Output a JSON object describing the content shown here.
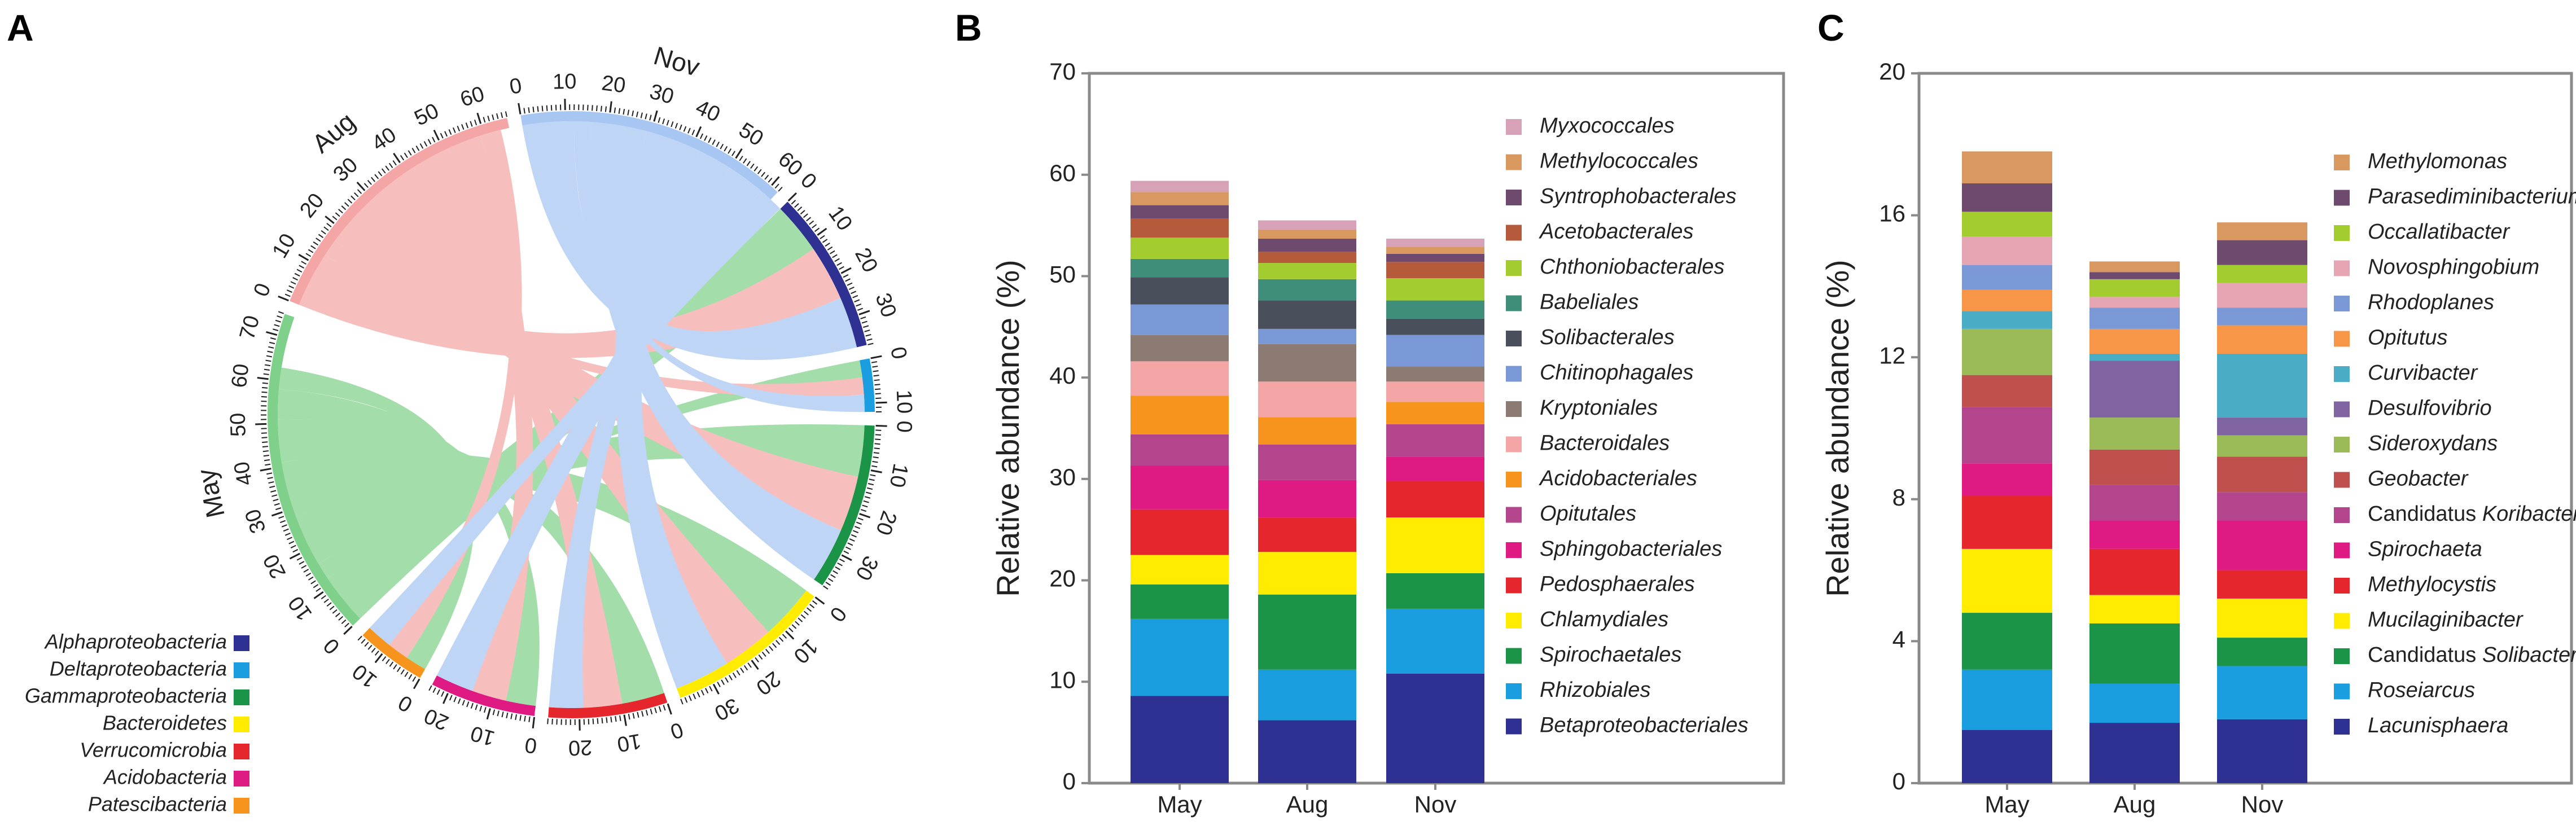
{
  "panels": {
    "a": "A",
    "b": "B",
    "c": "C"
  },
  "chart_data": [
    {
      "type": "chord",
      "panel": "A",
      "groups": [
        {
          "name": "Aug",
          "total": 66,
          "color": "#f4a6a6"
        },
        {
          "name": "Nov",
          "total": 62,
          "color": "#a7c6f2"
        },
        {
          "name": "Alphaproteobacteria",
          "total": 37,
          "color": "#2e3192"
        },
        {
          "name": "Deltaproteobacteria",
          "total": 12,
          "color": "#1b9ee0"
        },
        {
          "name": "Gammaproteobacteria",
          "total": 38,
          "color": "#1b9447"
        },
        {
          "name": "Bacteroidetes",
          "total": 38,
          "color": "#ffec00"
        },
        {
          "name": "Verrucomicrobia",
          "total": 27,
          "color": "#e5262c"
        },
        {
          "name": "Acidobacteria",
          "total": 24,
          "color": "#e01a83"
        },
        {
          "name": "Patescibacteria",
          "total": 16,
          "color": "#f7941d"
        },
        {
          "name": "May",
          "total": 75,
          "color": "#7fd08a"
        }
      ],
      "ticks": {
        "Aug": [
          "0",
          "10",
          "20",
          "30",
          "40",
          "50",
          "60"
        ],
        "Nov": [
          "0",
          "10",
          "20",
          "30",
          "40",
          "50",
          "60"
        ],
        "Alphaproteobacteria": [
          "0",
          "10",
          "20",
          "30"
        ],
        "Deltaproteobacteria": [
          "0",
          "10"
        ],
        "Gammaproteobacteria": [
          "0",
          "10",
          "20",
          "30"
        ],
        "Bacteroidetes": [
          "0",
          "10",
          "20",
          "30"
        ],
        "Verrucomicrobia": [
          "0",
          "10",
          "20"
        ],
        "Acidobacteria": [
          "0",
          "10",
          "20"
        ],
        "Patescibacteria": [
          "0",
          "10"
        ],
        "May": [
          "0",
          "10",
          "20",
          "30",
          "40",
          "50",
          "60",
          "70"
        ]
      },
      "links": [
        {
          "source": "May",
          "target": "Alphaproteobacteria",
          "value": 12
        },
        {
          "source": "May",
          "target": "Deltaproteobacteria",
          "value": 4
        },
        {
          "source": "May",
          "target": "Gammaproteobacteria",
          "value": 12
        },
        {
          "source": "May",
          "target": "Bacteroidetes",
          "value": 13
        },
        {
          "source": "May",
          "target": "Verrucomicrobia",
          "value": 10
        },
        {
          "source": "May",
          "target": "Acidobacteria",
          "value": 7
        },
        {
          "source": "May",
          "target": "Patescibacteria",
          "value": 5
        },
        {
          "source": "Aug",
          "target": "Alphaproteobacteria",
          "value": 13
        },
        {
          "source": "Aug",
          "target": "Deltaproteobacteria",
          "value": 4
        },
        {
          "source": "Aug",
          "target": "Gammaproteobacteria",
          "value": 13
        },
        {
          "source": "Aug",
          "target": "Bacteroidetes",
          "value": 12
        },
        {
          "source": "Aug",
          "target": "Verrucomicrobia",
          "value": 9
        },
        {
          "source": "Aug",
          "target": "Acidobacteria",
          "value": 8
        },
        {
          "source": "Aug",
          "target": "Patescibacteria",
          "value": 5
        },
        {
          "source": "Nov",
          "target": "Alphaproteobacteria",
          "value": 12
        },
        {
          "source": "Nov",
          "target": "Deltaproteobacteria",
          "value": 4
        },
        {
          "source": "Nov",
          "target": "Gammaproteobacteria",
          "value": 13
        },
        {
          "source": "Nov",
          "target": "Bacteroidetes",
          "value": 13
        },
        {
          "source": "Nov",
          "target": "Verrucomicrobia",
          "value": 8
        },
        {
          "source": "Nov",
          "target": "Acidobacteria",
          "value": 9
        },
        {
          "source": "Nov",
          "target": "Patescibacteria",
          "value": 6
        }
      ],
      "legend": [
        "Alphaproteobacteria",
        "Deltaproteobacteria",
        "Gammaproteobacteria",
        "Bacteroidetes",
        "Verrucomicrobia",
        "Acidobacteria",
        "Patescibacteria"
      ]
    },
    {
      "type": "bar",
      "stacked": true,
      "panel": "B",
      "categories": [
        "May",
        "Aug",
        "Nov"
      ],
      "ylabel": "Relative abundance (%)",
      "xlabel": "",
      "ylim": [
        0,
        70
      ],
      "yticks": [
        0,
        10,
        20,
        30,
        40,
        50,
        60,
        70
      ],
      "series": [
        {
          "name": "Betaproteobacteriales",
          "color": "#2e3192",
          "values": [
            8.6,
            6.2,
            10.8
          ]
        },
        {
          "name": "Rhizobiales",
          "color": "#1b9ee0",
          "values": [
            7.6,
            5.0,
            6.4
          ]
        },
        {
          "name": "Spirochaetales",
          "color": "#1b9447",
          "values": [
            3.4,
            7.4,
            3.5
          ]
        },
        {
          "name": "Chlamydiales",
          "color": "#ffec00",
          "values": [
            2.9,
            4.2,
            5.5
          ]
        },
        {
          "name": "Pedosphaerales",
          "color": "#e5262c",
          "values": [
            4.5,
            3.4,
            3.6
          ]
        },
        {
          "name": "Sphingobacteriales",
          "color": "#e01a83",
          "values": [
            4.3,
            3.7,
            2.4
          ]
        },
        {
          "name": "Opitutales",
          "color": "#b2458c",
          "values": [
            3.1,
            3.5,
            3.2
          ]
        },
        {
          "name": "Acidobacteriales",
          "color": "#f7941d",
          "values": [
            3.8,
            2.7,
            2.2
          ]
        },
        {
          "name": "Bacteroidales",
          "color": "#f4a6a6",
          "values": [
            3.4,
            3.5,
            2.0
          ]
        },
        {
          "name": "Kryptoniales",
          "color": "#8c7b72",
          "values": [
            2.6,
            3.7,
            1.5
          ]
        },
        {
          "name": "Chitinophagales",
          "color": "#7a98d6",
          "values": [
            3.0,
            1.5,
            3.1
          ]
        },
        {
          "name": "Solibacterales",
          "color": "#4a4f5c",
          "values": [
            2.7,
            2.8,
            1.6
          ]
        },
        {
          "name": "Babeliales",
          "color": "#3f8e7a",
          "values": [
            1.8,
            2.1,
            1.8
          ]
        },
        {
          "name": "Chthoniobacterales",
          "color": "#a3cc2f",
          "values": [
            2.1,
            1.6,
            2.2
          ]
        },
        {
          "name": "Acetobacterales",
          "color": "#b55a3b",
          "values": [
            1.9,
            1.1,
            1.6
          ]
        },
        {
          "name": "Syntrophobacterales",
          "color": "#6e4a6f",
          "values": [
            1.3,
            1.3,
            0.8
          ]
        },
        {
          "name": "Methylococcales",
          "color": "#d9985f",
          "values": [
            1.3,
            0.9,
            0.7
          ]
        },
        {
          "name": "Myxococcales",
          "color": "#d7a1b8",
          "values": [
            1.1,
            0.9,
            0.8
          ]
        }
      ],
      "legend_order": [
        "Myxococcales",
        "Methylococcales",
        "Syntrophobacterales",
        "Acetobacterales",
        "Chthoniobacterales",
        "Babeliales",
        "Solibacterales",
        "Chitinophagales",
        "Kryptoniales",
        "Bacteroidales",
        "Acidobacteriales",
        "Opitutales",
        "Sphingobacteriales",
        "Pedosphaerales",
        "Chlamydiales",
        "Spirochaetales",
        "Rhizobiales",
        "Betaproteobacteriales"
      ]
    },
    {
      "type": "bar",
      "stacked": true,
      "panel": "C",
      "categories": [
        "May",
        "Aug",
        "Nov"
      ],
      "ylabel": "Relative abundance (%)",
      "xlabel": "",
      "ylim": [
        0,
        20
      ],
      "yticks": [
        0,
        4,
        8,
        12,
        16,
        20
      ],
      "series": [
        {
          "name": "Lacunisphaera",
          "color": "#2e3192",
          "values": [
            1.5,
            1.7,
            1.8
          ]
        },
        {
          "name": "Roseiarcus",
          "color": "#1b9ee0",
          "values": [
            1.7,
            1.1,
            1.5
          ]
        },
        {
          "name": "Candidatus Solibacter",
          "color": "#1b9447",
          "values": [
            1.6,
            1.7,
            0.8
          ]
        },
        {
          "name": "Mucilaginibacter",
          "color": "#ffec00",
          "values": [
            1.8,
            0.8,
            1.1
          ]
        },
        {
          "name": "Methylocystis",
          "color": "#e5262c",
          "values": [
            1.5,
            1.3,
            0.8
          ]
        },
        {
          "name": "Spirochaeta",
          "color": "#e01a83",
          "values": [
            0.9,
            0.8,
            1.4
          ]
        },
        {
          "name": "Candidatus Koribacter",
          "color": "#b2458c",
          "values": [
            1.6,
            1.0,
            0.8
          ]
        },
        {
          "name": "Geobacter",
          "color": "#c0504d",
          "values": [
            0.9,
            1.0,
            1.0
          ]
        },
        {
          "name": "Sideroxydans",
          "color": "#9bbb59",
          "values": [
            1.3,
            0.9,
            0.6
          ]
        },
        {
          "name": "Desulfovibrio",
          "color": "#8064a2",
          "values": [
            0.0,
            1.6,
            0.5
          ]
        },
        {
          "name": "Curvibacter",
          "color": "#4bacc6",
          "values": [
            0.5,
            0.2,
            1.8
          ]
        },
        {
          "name": "Opitutus",
          "color": "#f79646",
          "values": [
            0.6,
            0.7,
            0.8
          ]
        },
        {
          "name": "Rhodoplanes",
          "color": "#7a98d6",
          "values": [
            0.7,
            0.6,
            0.5
          ]
        },
        {
          "name": "Novosphingobium",
          "color": "#e6a5b3",
          "values": [
            0.8,
            0.3,
            0.7
          ]
        },
        {
          "name": "Occallatibacter",
          "color": "#a3cc2f",
          "values": [
            0.7,
            0.5,
            0.5
          ]
        },
        {
          "name": "Parasediminibacterium",
          "color": "#6e4a6f",
          "values": [
            0.8,
            0.2,
            0.7
          ]
        },
        {
          "name": "Methylomonas",
          "color": "#d9985f",
          "values": [
            0.9,
            0.3,
            0.5
          ]
        }
      ],
      "legend_order": [
        "Methylomonas",
        "Parasediminibacterium",
        "Occallatibacter",
        "Novosphingobium",
        "Rhodoplanes",
        "Opitutus",
        "Curvibacter",
        "Desulfovibrio",
        "Sideroxydans",
        "Geobacter",
        "Candidatus Koribacter",
        "Spirochaeta",
        "Methylocystis",
        "Mucilaginibacter",
        "Candidatus Solibacter",
        "Roseiarcus",
        "Lacunisphaera"
      ],
      "legend_upright_prefix": {
        "Candidatus Koribacter": "Candidatus ",
        "Candidatus Solibacter": "Candidatus "
      }
    }
  ]
}
